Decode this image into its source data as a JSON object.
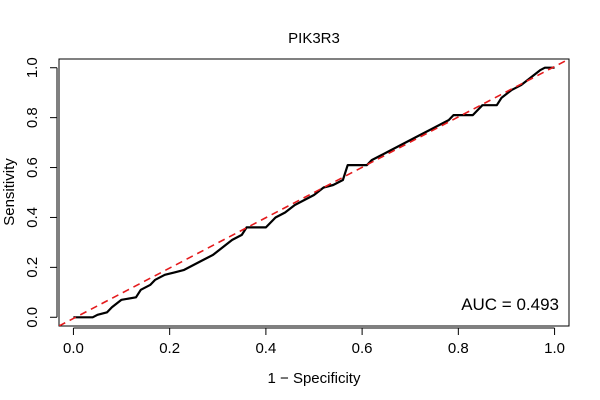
{
  "chart_data": {
    "type": "line",
    "title": "PIK3R3",
    "xlabel": "1 − Specificity",
    "ylabel": "Sensitivity",
    "xlim": [
      -0.03,
      1.03
    ],
    "ylim": [
      -0.035,
      1.035
    ],
    "x_ticks": [
      "0.0",
      "0.2",
      "0.4",
      "0.6",
      "0.8",
      "1.0"
    ],
    "y_ticks": [
      "0.0",
      "0.2",
      "0.4",
      "0.6",
      "0.8",
      "1.0"
    ],
    "grid": false,
    "legend": "none",
    "annotation": "AUC = 0.493",
    "series": [
      {
        "style": "solid",
        "color": "#000000",
        "points": [
          [
            0.0,
            0.0
          ],
          [
            0.04,
            0.0
          ],
          [
            0.05,
            0.01
          ],
          [
            0.07,
            0.02
          ],
          [
            0.08,
            0.04
          ],
          [
            0.1,
            0.07
          ],
          [
            0.13,
            0.08
          ],
          [
            0.14,
            0.11
          ],
          [
            0.16,
            0.13
          ],
          [
            0.17,
            0.15
          ],
          [
            0.19,
            0.17
          ],
          [
            0.21,
            0.18
          ],
          [
            0.23,
            0.19
          ],
          [
            0.25,
            0.21
          ],
          [
            0.27,
            0.23
          ],
          [
            0.29,
            0.25
          ],
          [
            0.31,
            0.28
          ],
          [
            0.33,
            0.31
          ],
          [
            0.35,
            0.33
          ],
          [
            0.36,
            0.36
          ],
          [
            0.4,
            0.36
          ],
          [
            0.42,
            0.4
          ],
          [
            0.44,
            0.42
          ],
          [
            0.46,
            0.45
          ],
          [
            0.48,
            0.47
          ],
          [
            0.5,
            0.49
          ],
          [
            0.52,
            0.52
          ],
          [
            0.54,
            0.53
          ],
          [
            0.56,
            0.55
          ],
          [
            0.57,
            0.61
          ],
          [
            0.61,
            0.61
          ],
          [
            0.62,
            0.63
          ],
          [
            0.64,
            0.65
          ],
          [
            0.66,
            0.67
          ],
          [
            0.68,
            0.69
          ],
          [
            0.7,
            0.71
          ],
          [
            0.72,
            0.73
          ],
          [
            0.74,
            0.75
          ],
          [
            0.76,
            0.77
          ],
          [
            0.78,
            0.79
          ],
          [
            0.79,
            0.81
          ],
          [
            0.83,
            0.81
          ],
          [
            0.85,
            0.85
          ],
          [
            0.88,
            0.85
          ],
          [
            0.89,
            0.88
          ],
          [
            0.91,
            0.91
          ],
          [
            0.93,
            0.93
          ],
          [
            0.95,
            0.96
          ],
          [
            0.97,
            0.99
          ],
          [
            0.98,
            1.0
          ],
          [
            1.0,
            1.0
          ]
        ]
      },
      {
        "style": "dashed",
        "color": "#e41a1c",
        "points": [
          [
            -0.03,
            -0.035
          ],
          [
            1.03,
            1.035
          ]
        ]
      }
    ]
  }
}
